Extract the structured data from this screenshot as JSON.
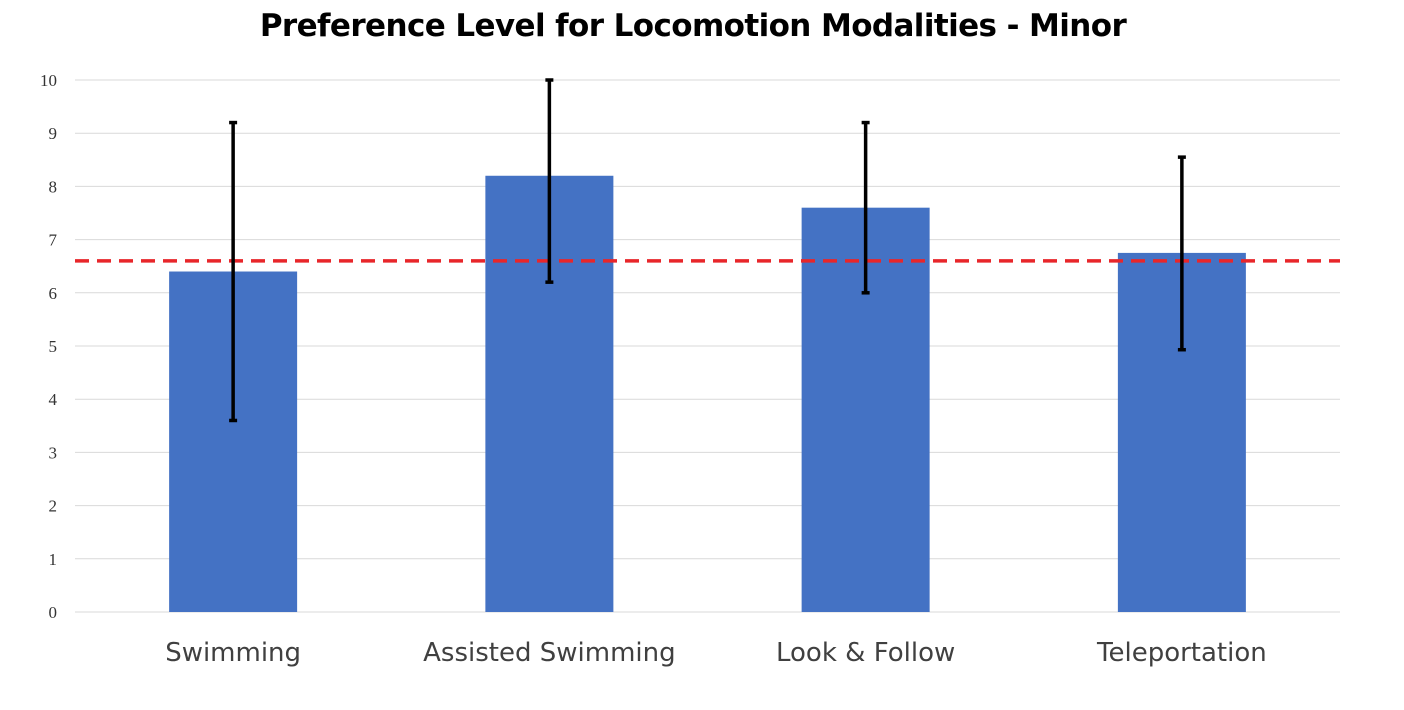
{
  "chart_data": {
    "type": "bar",
    "title": "Preference Level for Locomotion Modalities - Minor",
    "xlabel": "",
    "ylabel": "",
    "categories": [
      "Swimming",
      "Assisted Swimming",
      "Look & Follow",
      "Teleportation"
    ],
    "values": [
      6.4,
      8.2,
      7.6,
      6.75
    ],
    "error_low": [
      3.6,
      6.2,
      6.0,
      4.93
    ],
    "error_high": [
      9.2,
      10.0,
      9.2,
      8.55
    ],
    "ylim": [
      0,
      10
    ],
    "yticks": [
      0,
      1,
      2,
      3,
      4,
      5,
      6,
      7,
      8,
      9,
      10
    ],
    "grid": true,
    "reference_line": {
      "value": 6.6,
      "style": "dashed"
    },
    "colors": {
      "bar": "#4472C4",
      "error_bar": "#000000",
      "reference_line": "#E8262A",
      "gridline": "#D9D9D9"
    }
  }
}
